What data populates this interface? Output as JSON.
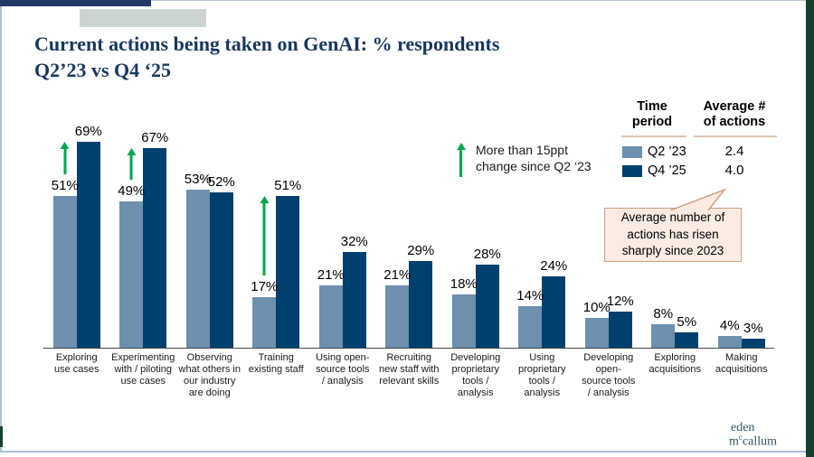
{
  "title": {
    "line1": "Current actions being taken on GenAI: % respondents",
    "line2": "Q2’23 vs Q4 ‘25"
  },
  "annotation": {
    "line1": "More than 15ppt",
    "line2": "change since Q2 ‘23"
  },
  "legend": {
    "col1_header_line1": "Time",
    "col1_header_line2": "period",
    "col2_header_line1": "Average #",
    "col2_header_line2": "of actions",
    "rows": [
      {
        "label": "Q2 ’23",
        "value": "2.4",
        "swatch": "#6c90ae"
      },
      {
        "label": "Q4 ’25",
        "value": "4.0",
        "swatch": "#00406f"
      }
    ]
  },
  "callout": {
    "line1": "Average number of",
    "line2": "actions has risen",
    "line3": "sharply since 2023"
  },
  "logo": {
    "line1": "eden",
    "l2a": "m",
    "l2b": "c",
    "l2c": "callum"
  },
  "colors": {
    "bar_light": "#6c90ae",
    "bar_dark": "#00406f",
    "arrow_green": "#00a651",
    "title_navy": "#17375e",
    "top_bar_navy": "#1f3864",
    "gray_rect": "#ccd4d1",
    "side_strip_green": "#14402c",
    "underline_tan": "#e2c4b0",
    "callout_bg": "#fcebe2",
    "callout_border": "#cfa084"
  },
  "chart_data": {
    "type": "bar",
    "title": "Current actions being taken on GenAI: % respondents Q2’23 vs Q4 ‘25",
    "unit": "%",
    "ylim": [
      0,
      75
    ],
    "grid": false,
    "legend_position": "top-right",
    "categories": [
      "Exploring use cases",
      "Experimenting with / piloting use cases",
      "Observing what others in our industry are doing",
      "Training existing staff",
      "Using open-source tools / analysis",
      "Recruiting new staff with relevant skills",
      "Developing proprietary tools / analysis",
      "Using proprietary tools / analysis",
      "Developing open-source tools / analysis",
      "Exploring acquisitions",
      "Making acquisitions"
    ],
    "category_label_lines": [
      [
        "Exploring",
        "use cases"
      ],
      [
        "Experimenting",
        "with / piloting",
        "use cases"
      ],
      [
        "Observing",
        "what others in",
        "our industry",
        "are doing"
      ],
      [
        "Training",
        "existing staff"
      ],
      [
        "Using open-",
        "source tools",
        "/ analysis"
      ],
      [
        "Recruiting",
        "new staff with",
        "relevant skills"
      ],
      [
        "Developing",
        "proprietary",
        "tools /",
        "analysis"
      ],
      [
        "Using",
        "proprietary",
        "tools /",
        "analysis"
      ],
      [
        "Developing",
        "open-",
        "source tools",
        "/ analysis"
      ],
      [
        "Exploring",
        "acquisitions"
      ],
      [
        "Making",
        "acquisitions"
      ]
    ],
    "series": [
      {
        "name": "Q2 ’23",
        "color": "#6c90ae",
        "values": [
          51,
          49,
          53,
          17,
          21,
          21,
          18,
          14,
          10,
          8,
          4
        ]
      },
      {
        "name": "Q4 ’25",
        "color": "#00406f",
        "values": [
          69,
          67,
          52,
          51,
          32,
          29,
          28,
          24,
          12,
          5,
          3
        ]
      }
    ],
    "arrow_note": "More than 15ppt change since Q2 ‘23",
    "arrow_categories": [
      0,
      1,
      3
    ],
    "average_number_of_actions": [
      {
        "period": "Q2 ’23",
        "value": 2.4
      },
      {
        "period": "Q4 ’25",
        "value": 4.0
      }
    ]
  }
}
